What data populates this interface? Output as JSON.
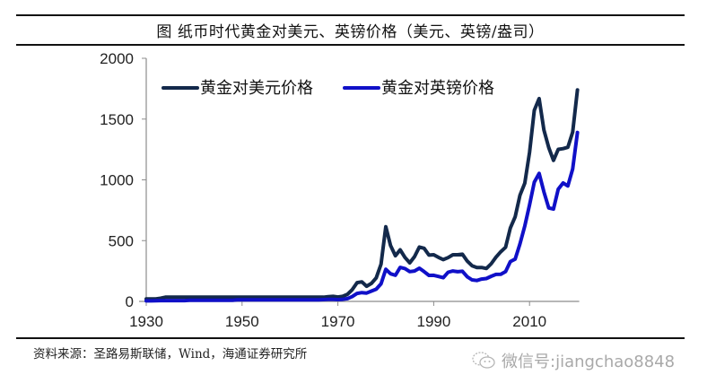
{
  "header": {
    "title": "图  纸币时代黄金对美元、英镑价格（美元、英镑/盎司）"
  },
  "footer": {
    "source": "资料来源：圣路易斯联储，Wind，海通证券研究所",
    "watermark_icon": "wechat-icon",
    "watermark_text": "微信号:jiangchao8848"
  },
  "colors": {
    "usd_line": "#13294b",
    "gbp_line": "#1010c8",
    "axis": "#8c8c8c",
    "rule": "#111111"
  },
  "chart_data": {
    "type": "line",
    "title": "纸币时代黄金对美元、英镑价格（美元、英镑/盎司）",
    "xlabel": "",
    "ylabel": "",
    "xlim": [
      1930,
      2020
    ],
    "ylim": [
      0,
      2000
    ],
    "x_ticks": [
      1930,
      1950,
      1970,
      1990,
      2010
    ],
    "y_ticks": [
      0,
      500,
      1000,
      1500,
      2000
    ],
    "grid": false,
    "legend_position": "top-left inside",
    "x": [
      1930,
      1931,
      1932,
      1933,
      1934,
      1935,
      1936,
      1937,
      1938,
      1939,
      1940,
      1941,
      1942,
      1943,
      1944,
      1945,
      1946,
      1947,
      1948,
      1949,
      1950,
      1951,
      1952,
      1953,
      1954,
      1955,
      1956,
      1957,
      1958,
      1959,
      1960,
      1961,
      1962,
      1963,
      1964,
      1965,
      1966,
      1967,
      1968,
      1969,
      1970,
      1971,
      1972,
      1973,
      1974,
      1975,
      1976,
      1977,
      1978,
      1979,
      1980,
      1981,
      1982,
      1983,
      1984,
      1985,
      1986,
      1987,
      1988,
      1989,
      1990,
      1991,
      1992,
      1993,
      1994,
      1995,
      1996,
      1997,
      1998,
      1999,
      2000,
      2001,
      2002,
      2003,
      2004,
      2005,
      2006,
      2007,
      2008,
      2009,
      2010,
      2011,
      2012,
      2013,
      2014,
      2015,
      2016,
      2017,
      2018,
      2019,
      2020
    ],
    "series": [
      {
        "name": "黄金对美元价格",
        "values": [
          20.7,
          20.7,
          20.7,
          26,
          35,
          35,
          35,
          35,
          35,
          35,
          35,
          35,
          35,
          35,
          35,
          35,
          35,
          35,
          35,
          35,
          35,
          35,
          35,
          35,
          35,
          35,
          35,
          35,
          35,
          35,
          35,
          35,
          35,
          35,
          35,
          35,
          35,
          35,
          39,
          41,
          36,
          41,
          58,
          97,
          154,
          161,
          125,
          148,
          193,
          306,
          615,
          460,
          376,
          424,
          361,
          317,
          368,
          447,
          437,
          381,
          384,
          362,
          344,
          360,
          384,
          384,
          388,
          331,
          294,
          279,
          279,
          271,
          310,
          364,
          409,
          445,
          604,
          696,
          872,
          972,
          1225,
          1572,
          1669,
          1411,
          1266,
          1160,
          1251,
          1257,
          1268,
          1393,
          1740
        ]
      },
      {
        "name": "黄金对英镑价格",
        "values": [
          4.25,
          4.25,
          5.9,
          6.3,
          7,
          7,
          7,
          7,
          7,
          8.7,
          8.7,
          8.7,
          8.7,
          8.7,
          8.7,
          8.7,
          8.7,
          8.7,
          8.7,
          12.5,
          12.5,
          12.5,
          12.5,
          12.5,
          12.5,
          12.5,
          12.5,
          12.5,
          12.5,
          12.5,
          12.5,
          12.5,
          12.5,
          12.5,
          12.5,
          12.5,
          12.5,
          14.6,
          16.2,
          17.1,
          15,
          16.8,
          23,
          39.5,
          66,
          72.5,
          69,
          85,
          100,
          145,
          264,
          227,
          215,
          280,
          270,
          245,
          250,
          273,
          245,
          214,
          215,
          205,
          195,
          240,
          250,
          244,
          248,
          202,
          177,
          172,
          184,
          188,
          207,
          222,
          223,
          245,
          328,
          348,
          472,
          620,
          793,
          981,
          1053,
          902,
          769,
          760,
          923,
          974,
          950,
          1090,
          1390
        ]
      }
    ]
  }
}
